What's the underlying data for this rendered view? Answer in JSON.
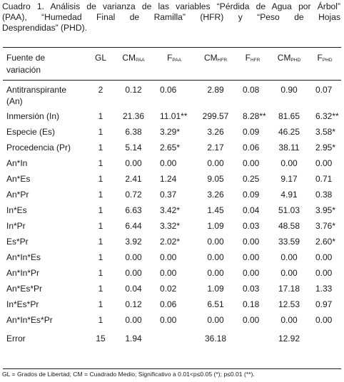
{
  "caption": {
    "label": "Cuadro 1.",
    "line1": "Análisis de varianza de las variables “Pérdida de Agua por Árbol”",
    "line2": "(PAA), “Humedad Final de Ramilla” (HFR) y “Peso de Hojas",
    "line3": "Desprendidas” (PHD)."
  },
  "header": {
    "source": "Fuente de",
    "source2": "variación",
    "gl": "GL",
    "cm": "CM",
    "f": "F",
    "paa": "PAA",
    "hfr": "HFR",
    "phd": "PHD"
  },
  "rows": [
    {
      "source": "Antitranspirante",
      "source2": "(An)",
      "gl": "2",
      "cm_paa": "0.12",
      "f_paa": "0.06",
      "cm_hfr": "2.89",
      "f_hfr": "0.08",
      "cm_phd": "0.90",
      "f_phd": "0.07"
    },
    {
      "source": "Inmersión (In)",
      "gl": "1",
      "cm_paa": "21.36",
      "f_paa": "11.01**",
      "cm_hfr": "299.57",
      "f_hfr": "8.28**",
      "cm_phd": "81.65",
      "f_phd": "6.32**"
    },
    {
      "source": "Especie (Es)",
      "gl": "1",
      "cm_paa": "6.38",
      "f_paa": "3.29*",
      "cm_hfr": "3.26",
      "f_hfr": "0.09",
      "cm_phd": "46.25",
      "f_phd": "3.58*"
    },
    {
      "source": "Procedencia (Pr)",
      "gl": "1",
      "cm_paa": "5.14",
      "f_paa": "2.65*",
      "cm_hfr": "2.17",
      "f_hfr": "0.06",
      "cm_phd": "38.11",
      "f_phd": "2.95*"
    },
    {
      "source": "An*In",
      "gl": "1",
      "cm_paa": "0.00",
      "f_paa": "0.00",
      "cm_hfr": "0.00",
      "f_hfr": "0.00",
      "cm_phd": "0.00",
      "f_phd": "0.00"
    },
    {
      "source": "An*Es",
      "gl": "1",
      "cm_paa": "2.41",
      "f_paa": "1.24",
      "cm_hfr": "9.05",
      "f_hfr": "0.25",
      "cm_phd": "9.17",
      "f_phd": "0.71"
    },
    {
      "source": "An*Pr",
      "gl": "1",
      "cm_paa": "0.72",
      "f_paa": "0.37",
      "cm_hfr": "3.26",
      "f_hfr": "0.09",
      "cm_phd": "4.91",
      "f_phd": "0.38"
    },
    {
      "source": "In*Es",
      "gl": "1",
      "cm_paa": "6.63",
      "f_paa": "3.42*",
      "cm_hfr": "1.45",
      "f_hfr": "0.04",
      "cm_phd": "51.03",
      "f_phd": "3.95*"
    },
    {
      "source": "In*Pr",
      "gl": "1",
      "cm_paa": "6.44",
      "f_paa": "3.32*",
      "cm_hfr": "1.09",
      "f_hfr": "0.03",
      "cm_phd": "48.58",
      "f_phd": "3.76*"
    },
    {
      "source": "Es*Pr",
      "gl": "1",
      "cm_paa": "3.92",
      "f_paa": "2.02*",
      "cm_hfr": "0.00",
      "f_hfr": "0.00",
      "cm_phd": "33.59",
      "f_phd": "2.60*"
    },
    {
      "source": "An*In*Es",
      "gl": "1",
      "cm_paa": "0.00",
      "f_paa": "0.00",
      "cm_hfr": "0.00",
      "f_hfr": "0.00",
      "cm_phd": "0.00",
      "f_phd": "0.00"
    },
    {
      "source": "An*In*Pr",
      "gl": "1",
      "cm_paa": "0.00",
      "f_paa": "0.00",
      "cm_hfr": "0.00",
      "f_hfr": "0.00",
      "cm_phd": "0.00",
      "f_phd": "0.00"
    },
    {
      "source": "An*Es*Pr",
      "gl": "1",
      "cm_paa": "0.04",
      "f_paa": "0.02",
      "cm_hfr": "1.09",
      "f_hfr": "0.03",
      "cm_phd": "17.18",
      "f_phd": "1.33"
    },
    {
      "source": "In*Es*Pr",
      "gl": "1",
      "cm_paa": "0.12",
      "f_paa": "0.06",
      "cm_hfr": "6.51",
      "f_hfr": "0.18",
      "cm_phd": "12.53",
      "f_phd": "0.97"
    },
    {
      "source": "An*In*Es*Pr",
      "gl": "1",
      "cm_paa": "0.00",
      "f_paa": "0.00",
      "cm_hfr": "0.00",
      "f_hfr": "0.00",
      "cm_phd": "0.00",
      "f_phd": "0.00"
    },
    {
      "source": "Error",
      "gl": "15",
      "cm_paa": "1.94",
      "f_paa": "",
      "cm_hfr": "36.18",
      "f_hfr": "",
      "cm_phd": "12.92",
      "f_phd": ""
    }
  ],
  "footnote": "GL = Grados de Libertad; CM = Cuadrado Medio; Significativo a 0.01<p≤0.05 (*); p≤0.01 (**)."
}
